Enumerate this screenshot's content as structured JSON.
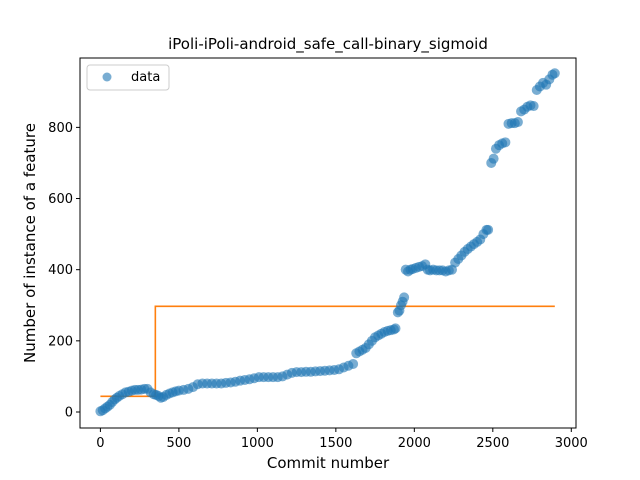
{
  "chart_data": {
    "type": "scatter",
    "title": "iPoli-iPoli-android_safe_call-binary_sigmoid",
    "xlabel": "Commit number",
    "ylabel": "Number of instance of a feature",
    "xlim": [
      -130,
      3030
    ],
    "ylim": [
      -45,
      995
    ],
    "xticks": [
      0,
      500,
      1000,
      1500,
      2000,
      2500,
      3000
    ],
    "yticks": [
      0,
      200,
      400,
      600,
      800
    ],
    "grid": false,
    "legend": {
      "placement": "top-left",
      "entries": [
        "data"
      ]
    },
    "colors": {
      "data": "#1f77b4",
      "fit": "#ff7f0e"
    },
    "series": [
      {
        "name": "data",
        "kind": "scatter",
        "points": [
          [
            0,
            2
          ],
          [
            15,
            5
          ],
          [
            30,
            10
          ],
          [
            45,
            15
          ],
          [
            60,
            20
          ],
          [
            75,
            28
          ],
          [
            90,
            35
          ],
          [
            105,
            40
          ],
          [
            120,
            45
          ],
          [
            140,
            50
          ],
          [
            160,
            55
          ],
          [
            180,
            57
          ],
          [
            200,
            60
          ],
          [
            220,
            62
          ],
          [
            240,
            62
          ],
          [
            260,
            63
          ],
          [
            280,
            65
          ],
          [
            300,
            65
          ],
          [
            320,
            55
          ],
          [
            340,
            50
          ],
          [
            355,
            48
          ],
          [
            370,
            45
          ],
          [
            385,
            40
          ],
          [
            400,
            42
          ],
          [
            420,
            48
          ],
          [
            440,
            52
          ],
          [
            460,
            55
          ],
          [
            480,
            58
          ],
          [
            500,
            60
          ],
          [
            530,
            62
          ],
          [
            560,
            65
          ],
          [
            590,
            70
          ],
          [
            620,
            78
          ],
          [
            650,
            80
          ],
          [
            680,
            80
          ],
          [
            710,
            80
          ],
          [
            740,
            80
          ],
          [
            770,
            80
          ],
          [
            800,
            82
          ],
          [
            830,
            83
          ],
          [
            860,
            85
          ],
          [
            890,
            88
          ],
          [
            920,
            90
          ],
          [
            950,
            92
          ],
          [
            980,
            95
          ],
          [
            1010,
            98
          ],
          [
            1040,
            98
          ],
          [
            1070,
            98
          ],
          [
            1100,
            98
          ],
          [
            1130,
            98
          ],
          [
            1160,
            100
          ],
          [
            1190,
            105
          ],
          [
            1220,
            110
          ],
          [
            1250,
            112
          ],
          [
            1280,
            112
          ],
          [
            1310,
            113
          ],
          [
            1340,
            113
          ],
          [
            1370,
            114
          ],
          [
            1400,
            115
          ],
          [
            1430,
            116
          ],
          [
            1460,
            117
          ],
          [
            1490,
            118
          ],
          [
            1520,
            120
          ],
          [
            1550,
            125
          ],
          [
            1580,
            130
          ],
          [
            1610,
            135
          ],
          [
            1630,
            165
          ],
          [
            1650,
            170
          ],
          [
            1670,
            175
          ],
          [
            1690,
            180
          ],
          [
            1710,
            190
          ],
          [
            1730,
            200
          ],
          [
            1750,
            210
          ],
          [
            1770,
            215
          ],
          [
            1790,
            220
          ],
          [
            1810,
            225
          ],
          [
            1830,
            228
          ],
          [
            1850,
            230
          ],
          [
            1870,
            232
          ],
          [
            1880,
            235
          ],
          [
            1895,
            280
          ],
          [
            1905,
            285
          ],
          [
            1915,
            300
          ],
          [
            1925,
            310
          ],
          [
            1935,
            322
          ],
          [
            1945,
            400
          ],
          [
            1960,
            395
          ],
          [
            1975,
            400
          ],
          [
            1990,
            402
          ],
          [
            2010,
            405
          ],
          [
            2030,
            408
          ],
          [
            2050,
            410
          ],
          [
            2070,
            415
          ],
          [
            2085,
            400
          ],
          [
            2100,
            398
          ],
          [
            2120,
            400
          ],
          [
            2140,
            398
          ],
          [
            2160,
            398
          ],
          [
            2180,
            398
          ],
          [
            2200,
            395
          ],
          [
            2220,
            398
          ],
          [
            2240,
            400
          ],
          [
            2260,
            420
          ],
          [
            2280,
            430
          ],
          [
            2300,
            440
          ],
          [
            2320,
            450
          ],
          [
            2340,
            458
          ],
          [
            2360,
            465
          ],
          [
            2380,
            472
          ],
          [
            2400,
            478
          ],
          [
            2420,
            485
          ],
          [
            2440,
            500
          ],
          [
            2460,
            512
          ],
          [
            2470,
            512
          ],
          [
            2490,
            700
          ],
          [
            2505,
            712
          ],
          [
            2520,
            740
          ],
          [
            2540,
            750
          ],
          [
            2560,
            755
          ],
          [
            2580,
            758
          ],
          [
            2600,
            810
          ],
          [
            2620,
            812
          ],
          [
            2640,
            812
          ],
          [
            2660,
            815
          ],
          [
            2680,
            845
          ],
          [
            2700,
            850
          ],
          [
            2720,
            858
          ],
          [
            2740,
            862
          ],
          [
            2760,
            860
          ],
          [
            2780,
            905
          ],
          [
            2800,
            915
          ],
          [
            2820,
            925
          ],
          [
            2840,
            920
          ],
          [
            2860,
            935
          ],
          [
            2880,
            948
          ],
          [
            2895,
            952
          ]
        ]
      },
      {
        "name": "fit",
        "kind": "step",
        "points": [
          [
            0,
            44
          ],
          [
            350,
            44
          ],
          [
            350,
            297
          ],
          [
            2895,
            297
          ]
        ]
      }
    ]
  }
}
